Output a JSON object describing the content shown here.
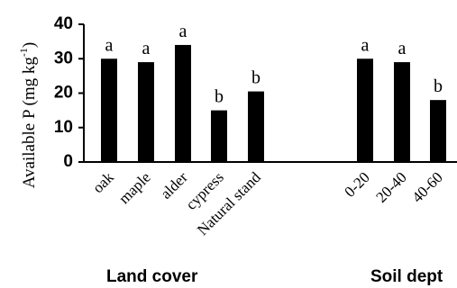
{
  "chart_data": {
    "type": "bar",
    "title": "",
    "ylabel_prefix": "Available  P (mg kg",
    "ylabel_sup": "-1",
    "ylabel_suffix": ")",
    "ylim": [
      0,
      40
    ],
    "yticks": [
      "0",
      "10",
      "20",
      "30",
      "40"
    ],
    "grid": false,
    "bar_color": "#000000",
    "groups": [
      {
        "label": "Land cover",
        "categories": [
          "oak",
          "maple",
          "alder",
          "cypress",
          "Natural stand"
        ],
        "values": [
          30,
          29,
          34,
          15,
          20.5
        ],
        "significance": [
          "a",
          "a",
          "a",
          "b",
          "b"
        ]
      },
      {
        "label": "Soil dept",
        "categories": [
          "0-20",
          "20-40",
          "40-60"
        ],
        "values": [
          30,
          29,
          18
        ],
        "significance": [
          "a",
          "a",
          "b"
        ]
      }
    ]
  }
}
